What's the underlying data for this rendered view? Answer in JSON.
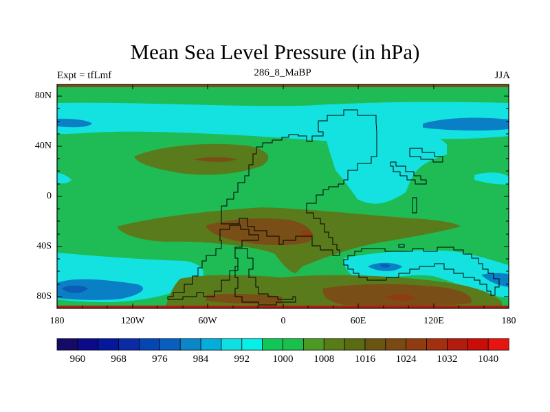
{
  "title": "Mean Sea Level Pressure (in hPa)",
  "subtitle_left": "Expt = tfLmf",
  "subtitle_center": "286_8_MaBP",
  "subtitle_right": "JJA",
  "y_axis_labels": [
    "80N",
    "40N",
    "0",
    "40S",
    "80S"
  ],
  "x_axis_labels": [
    "180",
    "120W",
    "60W",
    "0",
    "60E",
    "120E",
    "180"
  ],
  "colorbar": {
    "labels": [
      "960",
      "968",
      "976",
      "984",
      "992",
      "1000",
      "1008",
      "1016",
      "1024",
      "1032",
      "1040"
    ],
    "colors": [
      "#150a66",
      "#0b0a8a",
      "#05189c",
      "#0b2aa8",
      "#0646b4",
      "#0a5fbe",
      "#0b86c8",
      "#04aedc",
      "#0fdfe0",
      "#06f0e6",
      "#11c755",
      "#19c04c",
      "#4c9a24",
      "#587c16",
      "#5a6b12",
      "#6a5510",
      "#7a4a12",
      "#8f3d10",
      "#a2300f",
      "#b21c0e",
      "#c90e0a",
      "#e6150f"
    ]
  },
  "colors": {
    "cyan": "#13e2e0",
    "aqua": "#00d9b8",
    "green": "#1fbc56",
    "olive": "#5a7b1c",
    "brown": "#7a4e17",
    "blue": "#0b7fc6",
    "darkblue": "#0a5cb6",
    "red": "#b4200f",
    "coastline": "#000000"
  },
  "plot_elements": {
    "coastline_note": "Paleogeographic coastlines"
  }
}
